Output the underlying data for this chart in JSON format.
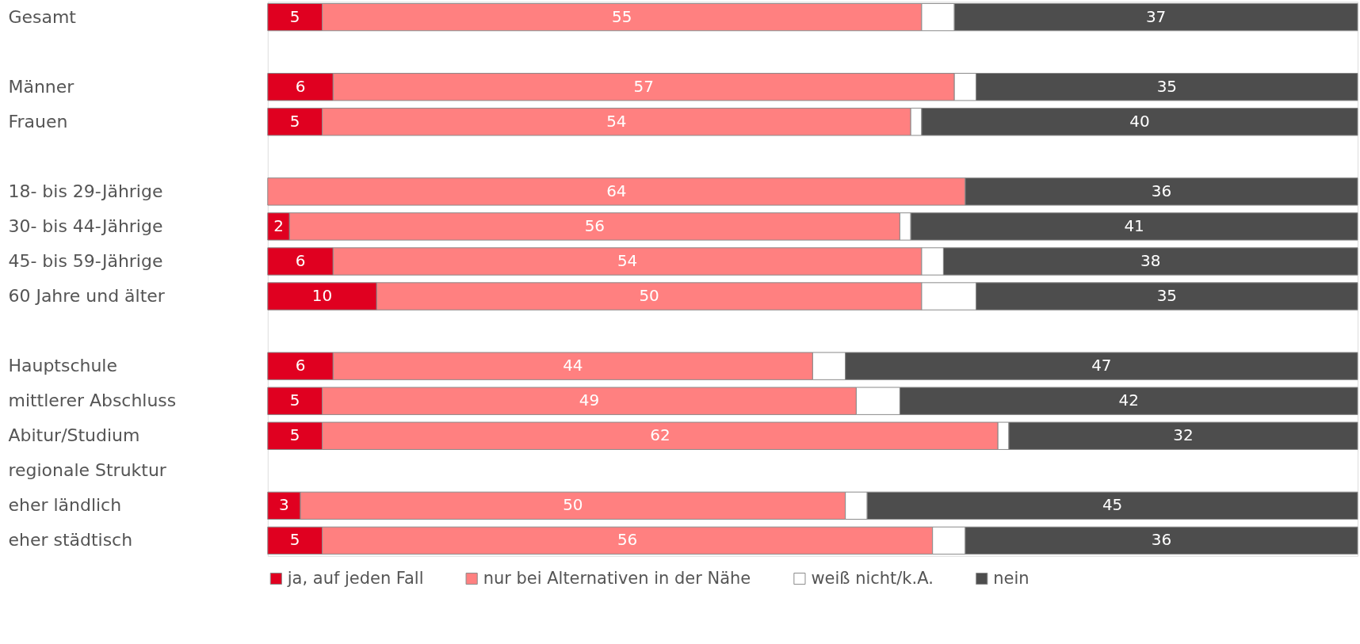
{
  "chart_data": {
    "type": "bar",
    "orientation": "horizontal",
    "stacked": true,
    "categories": [
      "Gesamt",
      null,
      "Männer",
      "Frauen",
      null,
      "18- bis 29-Jährige",
      "30- bis 44-Jährige",
      "45- bis 59-Jährige",
      "60 Jahre und älter",
      null,
      "Hauptschule",
      "mittlerer Abschluss",
      "Abitur/Studium",
      "regionale Struktur",
      "eher ländlich",
      "eher städtisch"
    ],
    "series": [
      {
        "name": "ja, auf jeden Fall",
        "color": "#e00020",
        "values": [
          5,
          null,
          6,
          5,
          null,
          null,
          2,
          6,
          10,
          null,
          6,
          5,
          5,
          null,
          3,
          5
        ],
        "value_labels": [
          "5",
          null,
          "6",
          "5",
          null,
          null,
          "2",
          "6",
          "10",
          null,
          "6",
          "5",
          "5",
          null,
          "3",
          "5"
        ]
      },
      {
        "name": "nur bei Alternativen in der Nähe",
        "color": "#ff8080",
        "values": [
          55,
          null,
          57,
          54,
          null,
          64,
          56,
          54,
          50,
          null,
          44,
          49,
          62,
          null,
          50,
          56
        ],
        "value_labels": [
          "55",
          null,
          "57",
          "54",
          null,
          "64",
          "56",
          "54",
          "50",
          null,
          "44",
          "49",
          "62",
          null,
          "50",
          "56"
        ]
      },
      {
        "name": "weiß nicht/k.A.",
        "color": "#ffffff",
        "values": [
          3,
          null,
          2,
          1,
          null,
          null,
          1,
          2,
          5,
          null,
          3,
          4,
          1,
          null,
          2,
          3
        ]
      },
      {
        "name": "nein",
        "color": "#4d4d4d",
        "values": [
          37,
          null,
          35,
          40,
          null,
          36,
          41,
          38,
          35,
          null,
          47,
          42,
          32,
          null,
          45,
          36
        ],
        "value_labels": [
          "37",
          null,
          "35",
          "40",
          null,
          "36",
          "41",
          "38",
          "35",
          null,
          "47",
          "42",
          "32",
          null,
          "45",
          "36"
        ]
      }
    ],
    "xlim": [
      0,
      100
    ],
    "tick_labels": "y",
    "grid": false,
    "legend": "bottom"
  }
}
